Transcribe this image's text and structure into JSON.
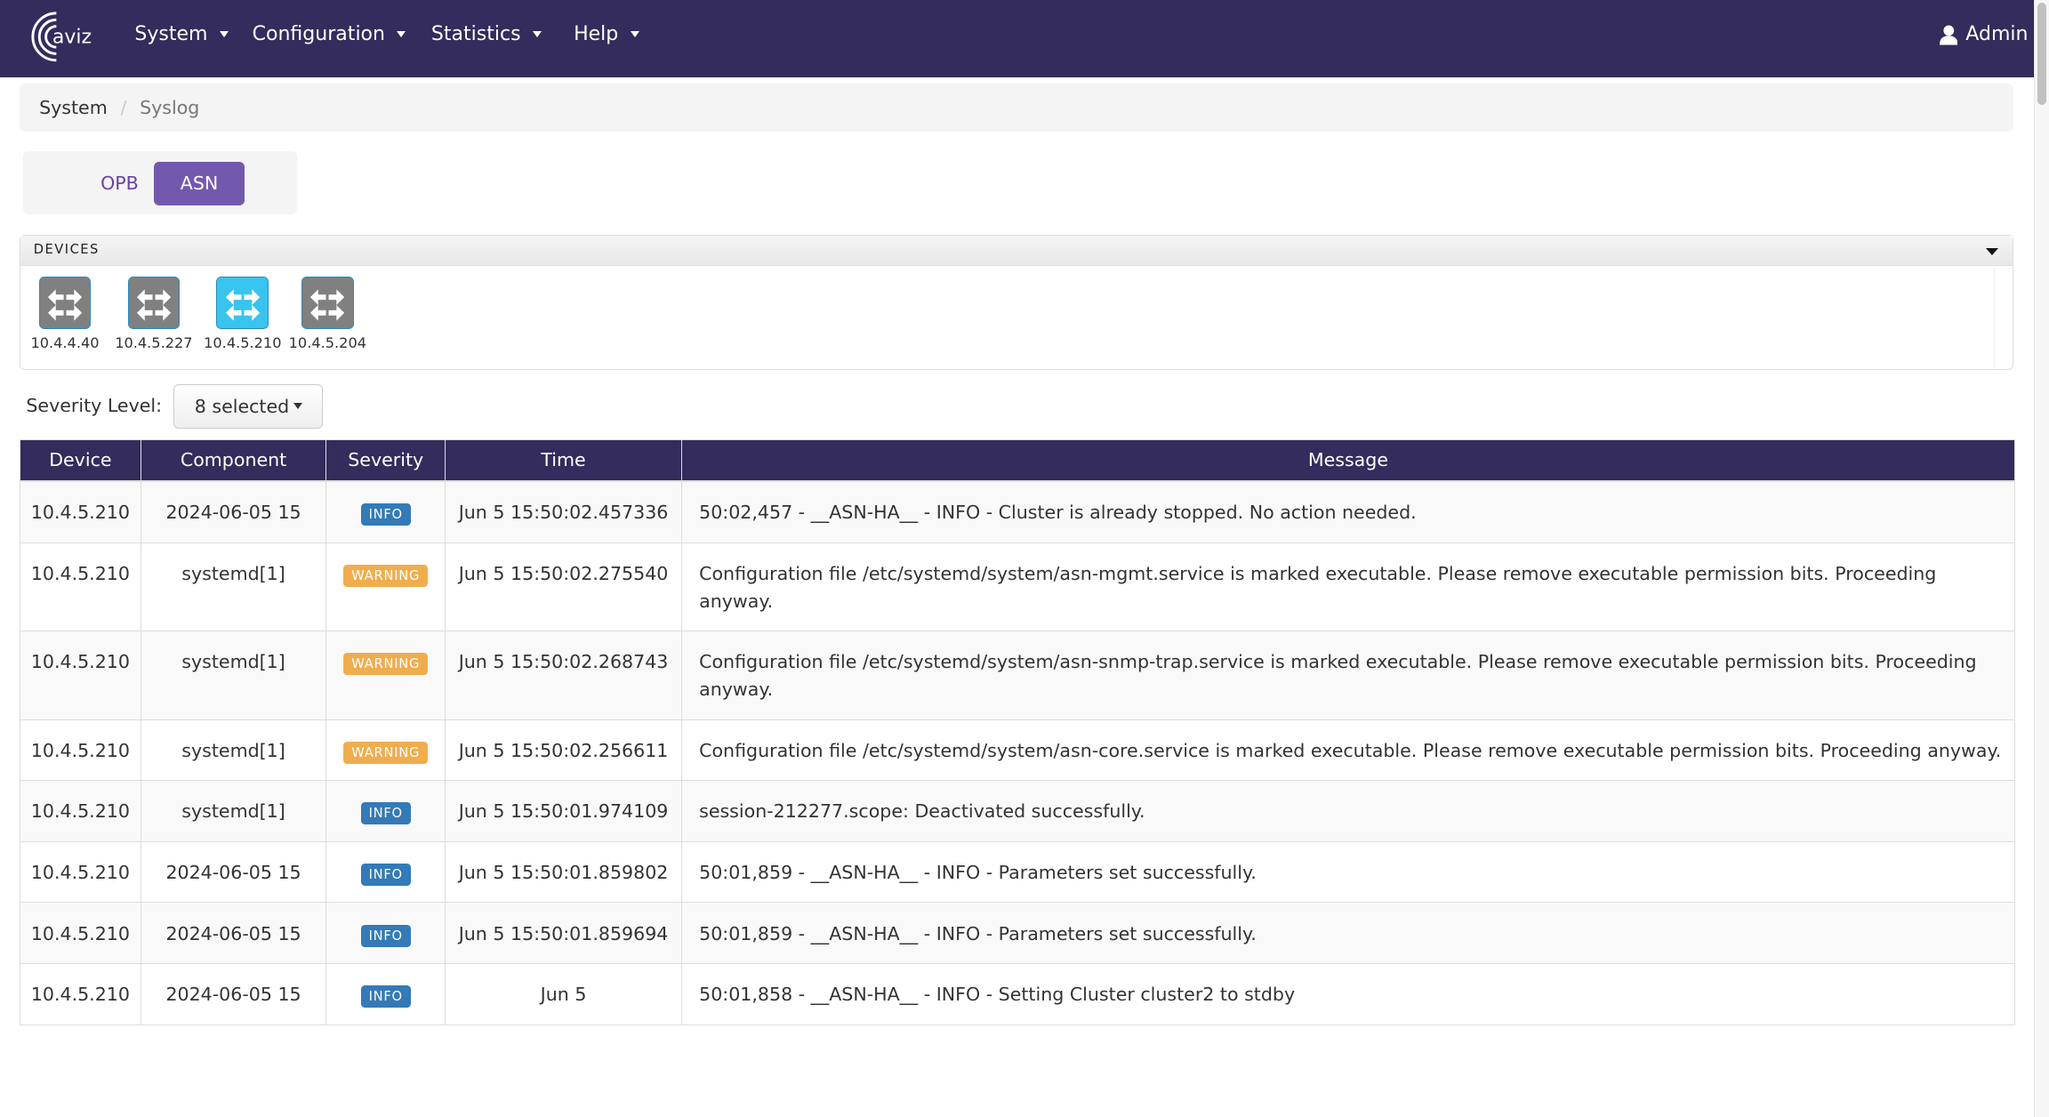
{
  "nav": {
    "brand": "aviz",
    "menus": [
      "System",
      "Configuration",
      "Statistics",
      "Help"
    ],
    "user": "Admin"
  },
  "breadcrumb": [
    "System",
    "Syslog"
  ],
  "toggle": {
    "options": [
      "OPB",
      "ASN"
    ],
    "selected": "ASN"
  },
  "devices": {
    "title": "DEVICES",
    "items": [
      {
        "ip": "10.4.4.40",
        "selected": false
      },
      {
        "ip": "10.4.5.227",
        "selected": false
      },
      {
        "ip": "10.4.5.210",
        "selected": true
      },
      {
        "ip": "10.4.5.204",
        "selected": false
      }
    ]
  },
  "severity": {
    "label": "Severity Level:",
    "value": "8 selected"
  },
  "colors": {
    "nav": "#332c5c",
    "info": "#337ab7",
    "warning": "#f0ad4e",
    "selected_device": "#38c4ef"
  },
  "table": {
    "headers": [
      "Device",
      "Component",
      "Severity",
      "Time",
      "Message"
    ],
    "rows": [
      {
        "device": "10.4.5.210",
        "component": "2024-06-05 15",
        "severity": "INFO",
        "time": "Jun 5 15:50:02.457336",
        "message": "50:02,457 - __ASN-HA__ - INFO - Cluster is already stopped. No action needed."
      },
      {
        "device": "10.4.5.210",
        "component": "systemd[1]",
        "severity": "WARNING",
        "time": "Jun 5 15:50:02.275540",
        "message": "Configuration file /etc/systemd/system/asn-mgmt.service is marked executable. Please remove executable permission bits. Proceeding anyway."
      },
      {
        "device": "10.4.5.210",
        "component": "systemd[1]",
        "severity": "WARNING",
        "time": "Jun 5 15:50:02.268743",
        "message": "Configuration file /etc/systemd/system/asn-snmp-trap.service is marked executable. Please remove executable permission bits. Proceeding anyway."
      },
      {
        "device": "10.4.5.210",
        "component": "systemd[1]",
        "severity": "WARNING",
        "time": "Jun 5 15:50:02.256611",
        "message": "Configuration file /etc/systemd/system/asn-core.service is marked executable. Please remove executable permission bits. Proceeding anyway."
      },
      {
        "device": "10.4.5.210",
        "component": "systemd[1]",
        "severity": "INFO",
        "time": "Jun 5 15:50:01.974109",
        "message": "session-212277.scope: Deactivated successfully."
      },
      {
        "device": "10.4.5.210",
        "component": "2024-06-05 15",
        "severity": "INFO",
        "time": "Jun 5 15:50:01.859802",
        "message": "50:01,859 - __ASN-HA__ - INFO - Parameters set successfully."
      },
      {
        "device": "10.4.5.210",
        "component": "2024-06-05 15",
        "severity": "INFO",
        "time": "Jun 5 15:50:01.859694",
        "message": "50:01,859 - __ASN-HA__ - INFO - Parameters set successfully."
      },
      {
        "device": "10.4.5.210",
        "component": "2024-06-05 15",
        "severity": "INFO",
        "time": "Jun 5",
        "message": "50:01,858 - __ASN-HA__ - INFO - Setting Cluster cluster2 to stdby"
      }
    ]
  }
}
